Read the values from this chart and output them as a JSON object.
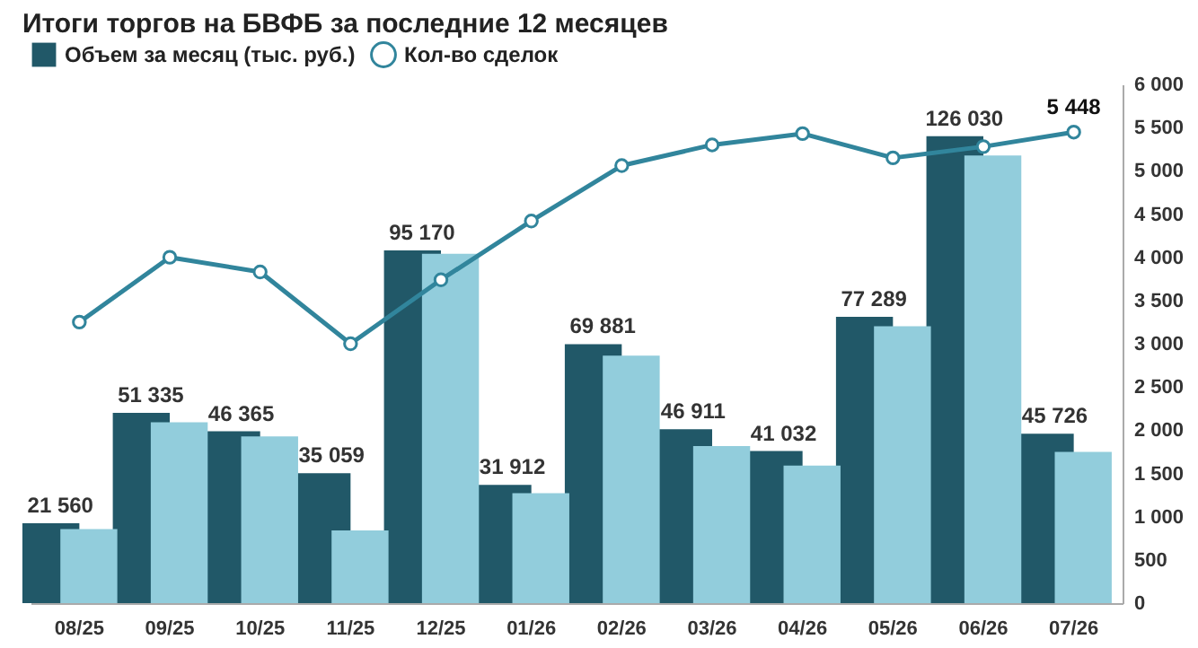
{
  "chart_data": {
    "type": "bar",
    "title": "Итоги торгов на БВФБ за последние 12 месяцев",
    "categories": [
      "08/25",
      "09/25",
      "10/25",
      "11/25",
      "12/25",
      "01/26",
      "02/26",
      "03/26",
      "04/26",
      "05/26",
      "06/26",
      "07/26"
    ],
    "ylim": [
      0,
      140000
    ],
    "y2lim": [
      0,
      6000
    ],
    "y2ticks": [
      0,
      500,
      {
        "value": 1000,
        "label": "1 000"
      },
      {
        "value": 1500,
        "label": "1 500"
      },
      {
        "value": 2000,
        "label": "2 000"
      },
      {
        "value": 2500,
        "label": "2 500"
      },
      {
        "value": 3000,
        "label": "3 000"
      },
      {
        "value": 3500,
        "label": "3 500"
      },
      {
        "value": 4000,
        "label": "4 000"
      },
      {
        "value": 4500,
        "label": "4 500"
      },
      {
        "value": 5000,
        "label": "5 000"
      },
      {
        "value": 5500,
        "label": "5 500"
      },
      {
        "value": 6000,
        "label": "6 000"
      }
    ],
    "legend": "top left",
    "grid": false,
    "series": [
      {
        "name": "Объем за месяц (тыс. руб.)",
        "color": "#215868",
        "values": [
          21560,
          51335,
          46365,
          35059,
          95170,
          31912,
          69881,
          46911,
          41032,
          77289,
          126030,
          45726
        ],
        "value_labels": [
          "21 560",
          "51 335",
          "46 365",
          "35 059",
          "95 170",
          "31 912",
          "69 881",
          "46 911",
          "41 032",
          "77 289",
          "126 030",
          "45 726"
        ]
      },
      {
        "color": "#92cddc",
        "values": [
          20000,
          48800,
          45000,
          19600,
          94300,
          29700,
          66800,
          42400,
          37100,
          74700,
          120800,
          40800
        ]
      },
      {
        "name": "Кол-во сделок",
        "type": "line",
        "axis": "y2",
        "color": "#31859c",
        "marker": "circle",
        "values": [
          3250,
          4000,
          3830,
          3000,
          3740,
          4420,
          5060,
          5300,
          5430,
          5150,
          5280,
          5448
        ],
        "value_labels": [
          null,
          null,
          null,
          null,
          null,
          null,
          null,
          null,
          null,
          null,
          null,
          "5 448"
        ]
      }
    ]
  }
}
